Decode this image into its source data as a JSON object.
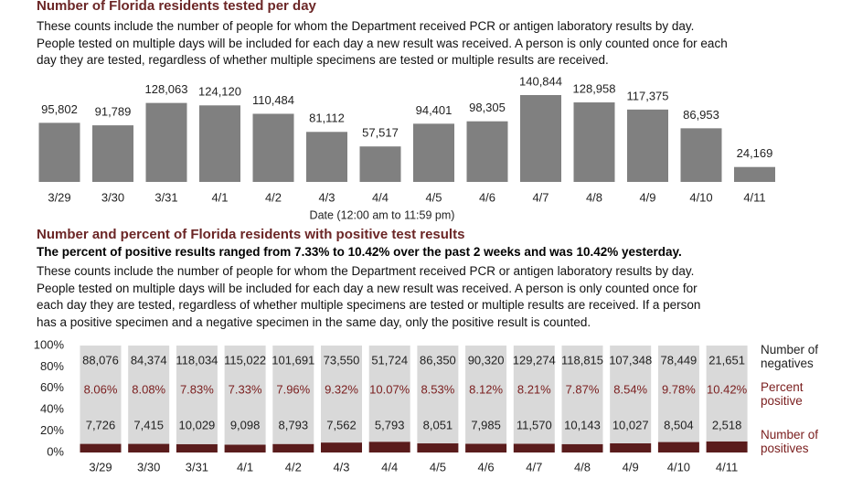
{
  "chart_data": [
    {
      "type": "bar",
      "title": "Number of Florida residents tested per day",
      "description": "These counts include the number of people for whom the Department received PCR or antigen laboratory results by day. People tested on multiple days will be included for each day a new result was received. A person is only counted once for each day they are tested, regardless of whether multiple specimens are tested or multiple results are received.",
      "x_label": "Date (12:00 am to 11:59 pm)",
      "categories": [
        "3/29",
        "3/30",
        "3/31",
        "4/1",
        "4/2",
        "4/3",
        "4/4",
        "4/5",
        "4/6",
        "4/7",
        "4/8",
        "4/9",
        "4/10",
        "4/11"
      ],
      "values": [
        95802,
        91789,
        128063,
        124120,
        110484,
        81112,
        57517,
        94401,
        98305,
        140844,
        128958,
        117375,
        86953,
        24169
      ],
      "value_labels": [
        "95,802",
        "91,789",
        "128,063",
        "124,120",
        "110,484",
        "81,112",
        "57,517",
        "94,401",
        "98,305",
        "140,844",
        "128,958",
        "117,375",
        "86,953",
        "24,169"
      ],
      "color": "#808080"
    },
    {
      "type": "stacked-percent-bar",
      "title": "Number and percent of Florida residents with positive test results",
      "subtitle": "The percent of positive results ranged from 7.33% to 10.42% over the past 2 weeks and was 10.42% yesterday.",
      "description": "These counts include the number of people for whom the Department received PCR or antigen laboratory results by day. People tested on multiple days will be included for each day a new result was received. A person is only counted once for each day they are tested, regardless of whether multiple specimens are tested or multiple results are received. If a person has a positive specimen and a negative specimen in the same day, only the positive result is counted.",
      "categories": [
        "3/29",
        "3/30",
        "3/31",
        "4/1",
        "4/2",
        "4/3",
        "4/4",
        "4/5",
        "4/6",
        "4/7",
        "4/8",
        "4/9",
        "4/10",
        "4/11"
      ],
      "ylim": [
        0,
        100
      ],
      "yticks": [
        {
          "value": 0,
          "label": "0%"
        },
        {
          "value": 20,
          "label": "20%"
        },
        {
          "value": 40,
          "label": "40%"
        },
        {
          "value": 60,
          "label": "60%"
        },
        {
          "value": 80,
          "label": "80%"
        },
        {
          "value": 100,
          "label": "100%"
        }
      ],
      "series": [
        {
          "name": "Number of positives",
          "color": "#5a1c1c",
          "values": [
            7726,
            7415,
            10029,
            9098,
            8793,
            7562,
            5793,
            8051,
            7985,
            11570,
            10143,
            10027,
            8504,
            2518
          ],
          "value_labels": [
            "7,726",
            "7,415",
            "10,029",
            "9,098",
            "8,793",
            "7,562",
            "5,793",
            "8,051",
            "7,985",
            "11,570",
            "10,143",
            "10,027",
            "8,504",
            "2,518"
          ]
        },
        {
          "name": "Number of negatives",
          "color": "#d9d9d9",
          "values": [
            88076,
            84374,
            118034,
            115022,
            101691,
            73550,
            51724,
            86350,
            90320,
            129274,
            118815,
            107348,
            78449,
            21651
          ],
          "value_labels": [
            "88,076",
            "84,374",
            "118,034",
            "115,022",
            "101,691",
            "73,550",
            "51,724",
            "86,350",
            "90,320",
            "129,274",
            "118,815",
            "107,348",
            "78,449",
            "21,651"
          ]
        },
        {
          "name": "Percent positive",
          "color": "#7b2020",
          "values": [
            8.06,
            8.08,
            7.83,
            7.33,
            7.96,
            9.32,
            10.07,
            8.53,
            8.12,
            8.21,
            7.87,
            8.54,
            9.78,
            10.42
          ],
          "value_labels": [
            "8.06%",
            "8.08%",
            "7.83%",
            "7.33%",
            "7.96%",
            "9.32%",
            "10.07%",
            "8.53%",
            "8.12%",
            "8.21%",
            "7.87%",
            "8.54%",
            "9.78%",
            "10.42%"
          ]
        }
      ]
    }
  ]
}
